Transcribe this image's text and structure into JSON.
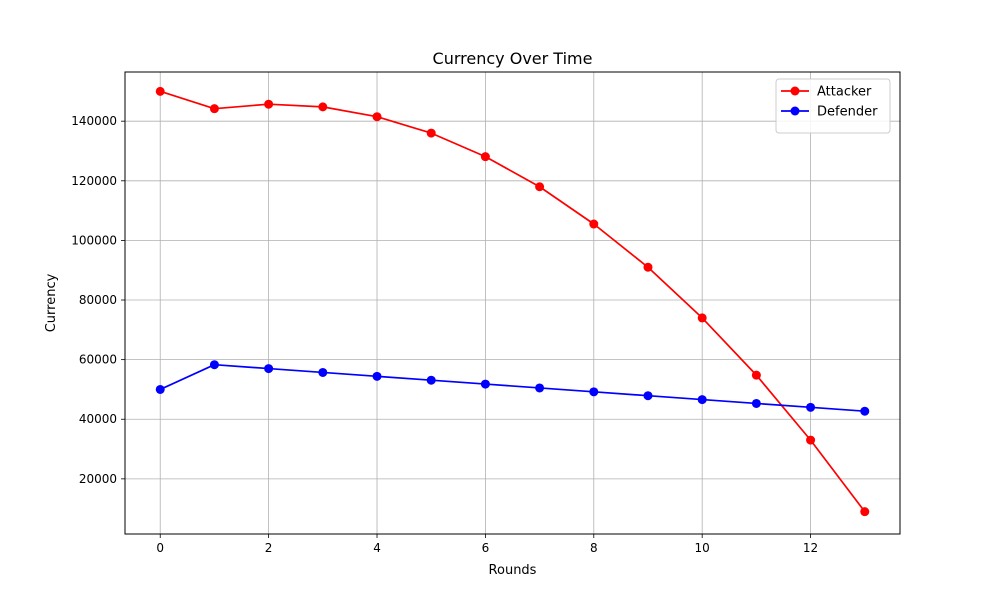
{
  "chart_data": {
    "type": "line",
    "title": "Currency Over Time",
    "xlabel": "Rounds",
    "ylabel": "Currency",
    "xlim": [
      -0.65,
      13.65
    ],
    "ylim": [
      1500,
      156500
    ],
    "xticks": [
      0,
      2,
      4,
      6,
      8,
      10,
      12
    ],
    "xtick_labels": [
      "0",
      "2",
      "4",
      "6",
      "8",
      "10",
      "12"
    ],
    "yticks": [
      20000,
      40000,
      60000,
      80000,
      100000,
      120000,
      140000
    ],
    "ytick_labels": [
      "20000",
      "40000",
      "60000",
      "80000",
      "100000",
      "120000",
      "140000"
    ],
    "grid": true,
    "legend_position": "top-right",
    "x": [
      0,
      1,
      2,
      3,
      4,
      5,
      6,
      7,
      8,
      9,
      10,
      11,
      12,
      13
    ],
    "series": [
      {
        "name": "Attacker",
        "color": "#ff0000",
        "marker": "circle",
        "values": [
          150000,
          144200,
          145700,
          144800,
          141500,
          136000,
          128100,
          118000,
          105500,
          91000,
          74000,
          54800,
          33000,
          9000
        ]
      },
      {
        "name": "Defender",
        "color": "#0000ff",
        "marker": "circle",
        "values": [
          50000,
          58300,
          57000,
          55700,
          54400,
          53100,
          51800,
          50500,
          49200,
          47900,
          46600,
          45300,
          44000,
          42700
        ]
      }
    ]
  }
}
